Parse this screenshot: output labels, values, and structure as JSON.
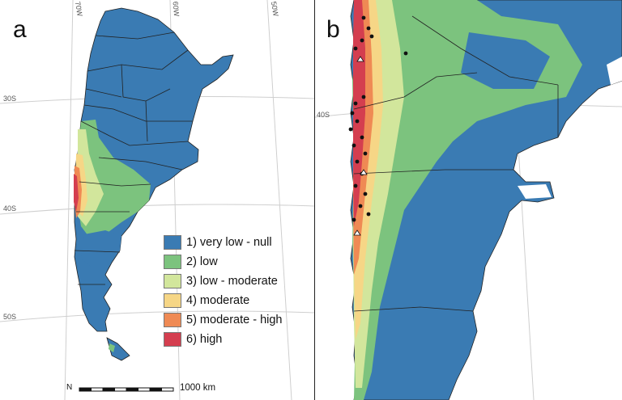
{
  "panels": [
    {
      "letter": "a",
      "grid_labels": {
        "lon_70": "70W",
        "lon_60": "60W",
        "lon_50": "50W",
        "lat_30": "30S",
        "lat_40": "40S",
        "lat_50": "50S"
      },
      "legend": [
        {
          "label": "1) very low - null",
          "color": "#3a7bb3"
        },
        {
          "label": "2) low",
          "color": "#7cc37e"
        },
        {
          "label": "3) low - moderate",
          "color": "#d2e69c"
        },
        {
          "label": "4) moderate",
          "color": "#f6d686"
        },
        {
          "label": "5) moderate - high",
          "color": "#ef8a54"
        },
        {
          "label": "6) high",
          "color": "#d43e4f"
        }
      ],
      "scale": {
        "north": "N",
        "label": "1000 km"
      }
    },
    {
      "letter": "b",
      "grid_labels": {
        "lat_40": "40S"
      }
    }
  ],
  "colors": {
    "ocean": "#ffffff",
    "border": "#222222",
    "graticule": "#cccccc"
  }
}
